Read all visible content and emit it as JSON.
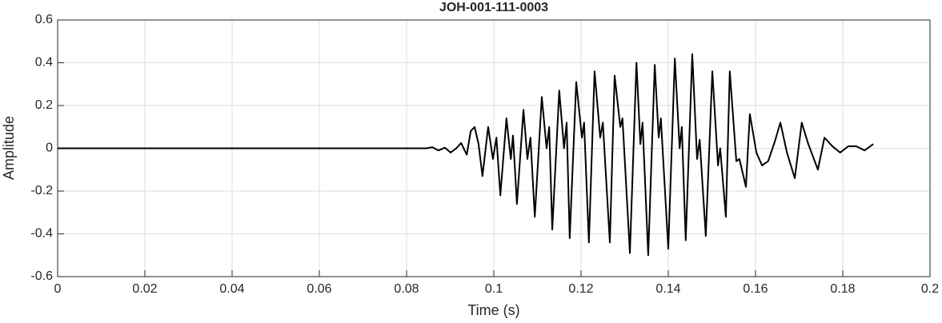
{
  "chart_data": {
    "type": "line",
    "title": "JOH-001-111-0003",
    "xlabel": "Time (s)",
    "ylabel": "Amplitude",
    "x": [
      0,
      0.02,
      0.04,
      0.06,
      0.08,
      0.0846,
      0.0859,
      0.0873,
      0.0888,
      0.0901,
      0.0914,
      0.0925,
      0.0938,
      0.0947,
      0.0956,
      0.0965,
      0.0974,
      0.0987,
      0.0998,
      0.1006,
      0.1015,
      0.1029,
      0.1039,
      0.1044,
      0.1053,
      0.1068,
      0.1077,
      0.1084,
      0.1094,
      0.111,
      0.1121,
      0.1127,
      0.1134,
      0.115,
      0.1161,
      0.1167,
      0.1174,
      0.1189,
      0.1202,
      0.1207,
      0.1218,
      0.1231,
      0.1244,
      0.125,
      0.1266,
      0.1277,
      0.129,
      0.1295,
      0.1312,
      0.1327,
      0.1336,
      0.1341,
      0.1354,
      0.1369,
      0.1378,
      0.1383,
      0.14,
      0.1415,
      0.1426,
      0.1431,
      0.144,
      0.1455,
      0.1466,
      0.1472,
      0.1486,
      0.1501,
      0.1514,
      0.1519,
      0.1532,
      0.1541,
      0.1556,
      0.1563,
      0.1578,
      0.1587,
      0.1602,
      0.1615,
      0.1629,
      0.1644,
      0.1657,
      0.1672,
      0.169,
      0.1706,
      0.1721,
      0.1743,
      0.1758,
      0.1776,
      0.1794,
      0.1813,
      0.1831,
      0.185,
      0.187
    ],
    "values": [
      0,
      0,
      0,
      0,
      0,
      0,
      0.005,
      -0.01,
      0.003,
      -0.02,
      0.0,
      0.025,
      -0.03,
      0.08,
      0.1,
      0.02,
      -0.13,
      0.1,
      -0.05,
      0.05,
      -0.22,
      0.14,
      -0.05,
      0.06,
      -0.26,
      0.18,
      -0.05,
      0.05,
      -0.32,
      0.24,
      0.0,
      0.1,
      -0.38,
      0.27,
      0.0,
      0.12,
      -0.42,
      0.31,
      0.05,
      0.12,
      -0.44,
      0.36,
      0.05,
      0.12,
      -0.44,
      0.34,
      0.1,
      0.14,
      -0.49,
      0.4,
      0.02,
      0.12,
      -0.5,
      0.39,
      0.05,
      0.14,
      -0.47,
      0.42,
      0.0,
      0.1,
      -0.43,
      0.44,
      -0.05,
      0.04,
      -0.41,
      0.36,
      -0.08,
      0.0,
      -0.32,
      0.36,
      -0.06,
      -0.05,
      -0.18,
      0.16,
      -0.02,
      -0.08,
      -0.06,
      0.03,
      0.12,
      -0.02,
      -0.14,
      0.12,
      0.02,
      -0.1,
      0.05,
      0.01,
      -0.02,
      0.01,
      0.01,
      -0.01,
      0.02
    ],
    "color": "#000000",
    "xlim": [
      0,
      0.2
    ],
    "xticks": [
      0,
      0.02,
      0.04,
      0.06,
      0.08,
      0.1,
      0.12,
      0.14,
      0.16,
      0.18,
      0.2
    ],
    "ylim": [
      -0.6,
      0.6
    ],
    "yticks": [
      -0.6,
      -0.4,
      -0.2,
      0,
      0.2,
      0.4,
      0.6
    ],
    "grid": true
  }
}
